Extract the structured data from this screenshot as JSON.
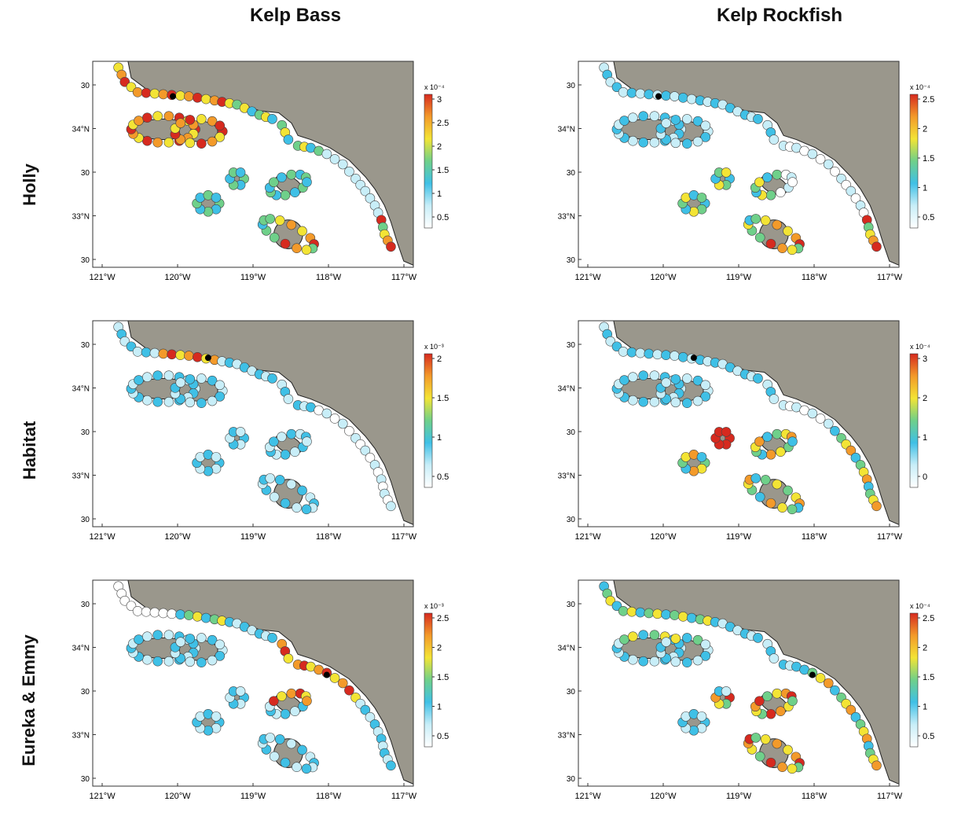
{
  "column_titles": [
    "Kelp Bass",
    "Kelp Rockfish"
  ],
  "row_titles": [
    "Holly",
    "Habitat",
    "Eureka & Emmy"
  ],
  "lon_ticks": [
    "121°W",
    "120°W",
    "119°W",
    "118°W",
    "117°W"
  ],
  "lat_ticks": [
    "30",
    "34°N",
    "30",
    "33°N",
    "30"
  ],
  "colors": {
    "land": "#9a978c",
    "coast_stroke": "#222222",
    "site_stroke": "#444444"
  },
  "panels": [
    {
      "row": 0,
      "col": 0,
      "colorbar": {
        "exponent": "x 10⁻⁴",
        "ticks": [
          "3",
          "2.5",
          "2",
          "1.5",
          "1",
          "0.5"
        ]
      }
    },
    {
      "row": 0,
      "col": 1,
      "colorbar": {
        "exponent": "x 10⁻⁴",
        "ticks": [
          "2.5",
          "2",
          "1.5",
          "1",
          "0.5"
        ]
      }
    },
    {
      "row": 1,
      "col": 0,
      "colorbar": {
        "exponent": "x 10⁻³",
        "ticks": [
          "2",
          "1.5",
          "1",
          "0.5"
        ]
      }
    },
    {
      "row": 1,
      "col": 1,
      "colorbar": {
        "exponent": "x 10⁻⁴",
        "ticks": [
          "3",
          "2",
          "1",
          "0"
        ]
      }
    },
    {
      "row": 2,
      "col": 0,
      "colorbar": {
        "exponent": "x 10⁻³",
        "ticks": [
          "2.5",
          "2",
          "1.5",
          "1",
          "0.5"
        ]
      }
    },
    {
      "row": 2,
      "col": 1,
      "colorbar": {
        "exponent": "x 10⁻⁴",
        "ticks": [
          "2.5",
          "2",
          "1.5",
          "1",
          "0.5"
        ]
      }
    }
  ]
}
